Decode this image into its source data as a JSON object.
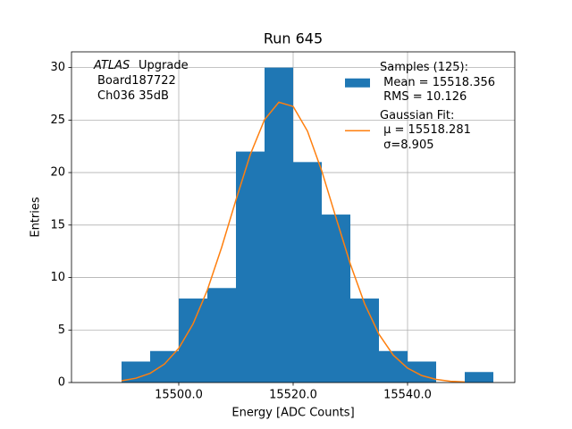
{
  "chart_data": {
    "type": "histogram",
    "title": "Run 645",
    "xlabel": "Energy [ADC Counts]",
    "ylabel": "Entries",
    "annotation": [
      "ATLAS",
      "Upgrade",
      "Board187722",
      "Ch036 35dB"
    ],
    "bins": [
      15490,
      15495,
      15500,
      15505,
      15510,
      15515,
      15520,
      15525,
      15530,
      15535,
      15540,
      15545,
      15550,
      15555
    ],
    "series": [
      {
        "name": "Samples (125):\n Mean = 15518.356\n RMS = 10.126",
        "color": "#1f77b4",
        "values": [
          2,
          3,
          8,
          9,
          22,
          30,
          21,
          16,
          8,
          3,
          2,
          0,
          1
        ]
      },
      {
        "name": "Gaussian Fit:\n μ = 15518.281\n σ=8.905",
        "color": "#ff7f0e",
        "type": "line",
        "x": [
          15490,
          15492.5,
          15495,
          15497.5,
          15500,
          15502.5,
          15505,
          15507.5,
          15510,
          15512.5,
          15515,
          15517.5,
          15520,
          15522.5,
          15525,
          15527.5,
          15530,
          15532.5,
          15535,
          15537.5,
          15540,
          15542.5,
          15545,
          15547.5,
          15550
        ],
        "values": [
          0.17,
          0.41,
          0.88,
          1.76,
          3.26,
          5.58,
          8.81,
          12.88,
          17.39,
          21.71,
          25.04,
          26.7,
          26.3,
          23.95,
          20.16,
          15.68,
          11.28,
          7.49,
          4.6,
          2.61,
          1.37,
          0.66,
          0.3,
          0.12,
          0.05
        ]
      }
    ],
    "xlim": [
      15481.25,
      15558.75
    ],
    "ylim": [
      0,
      31.5
    ],
    "xticks": [
      {
        "value": 15500,
        "label": "15500.0"
      },
      {
        "value": 15520,
        "label": "15520.0"
      },
      {
        "value": 15540,
        "label": "15540.0"
      }
    ],
    "yticks": [
      0,
      5,
      10,
      15,
      20,
      25,
      30
    ],
    "grid": true,
    "legend": "upper right"
  }
}
